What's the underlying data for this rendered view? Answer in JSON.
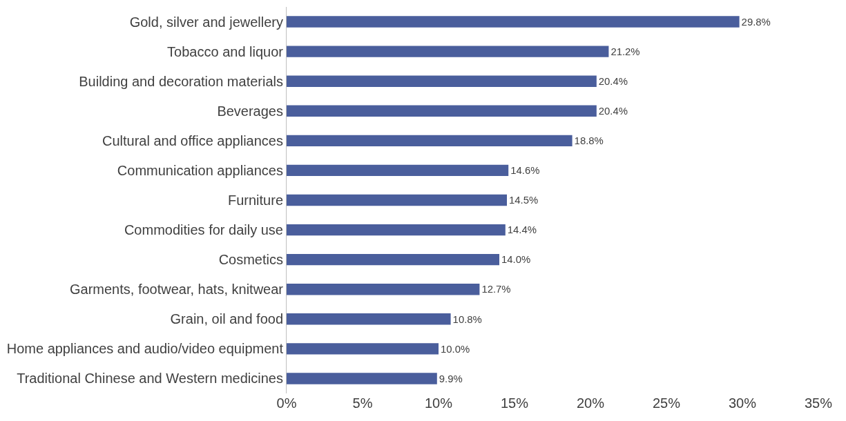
{
  "chart_data": {
    "type": "bar",
    "orientation": "horizontal",
    "categories": [
      "Gold, silver and jewellery",
      "Tobacco and liquor",
      "Building and decoration materials",
      "Beverages",
      "Cultural and office appliances",
      "Communication appliances",
      "Furniture",
      "Commodities for daily use",
      "Cosmetics",
      "Garments, footwear, hats, knitwear",
      "Grain, oil and food",
      "Home appliances and audio/video equipment",
      "Traditional Chinese and Western medicines"
    ],
    "values": [
      29.8,
      21.2,
      20.4,
      20.4,
      18.8,
      14.6,
      14.5,
      14.4,
      14.0,
      12.7,
      10.8,
      10.0,
      9.9
    ],
    "value_labels": [
      "29.8%",
      "21.2%",
      "20.4%",
      "20.4%",
      "18.8%",
      "14.6%",
      "14.5%",
      "14.4%",
      "14.0%",
      "12.7%",
      "10.8%",
      "10.0%",
      "9.9%"
    ],
    "color": "#4a5e9c",
    "xlim": [
      0,
      35
    ],
    "xticks": [
      {
        "value": 0,
        "label": "0%"
      },
      {
        "value": 5,
        "label": "5%"
      },
      {
        "value": 10,
        "label": "10%"
      },
      {
        "value": 15,
        "label": "15%"
      },
      {
        "value": 20,
        "label": "20%"
      },
      {
        "value": 25,
        "label": "25%"
      },
      {
        "value": 30,
        "label": "30%"
      },
      {
        "value": 35,
        "label": "35%"
      }
    ],
    "grid": false,
    "legend": false
  }
}
